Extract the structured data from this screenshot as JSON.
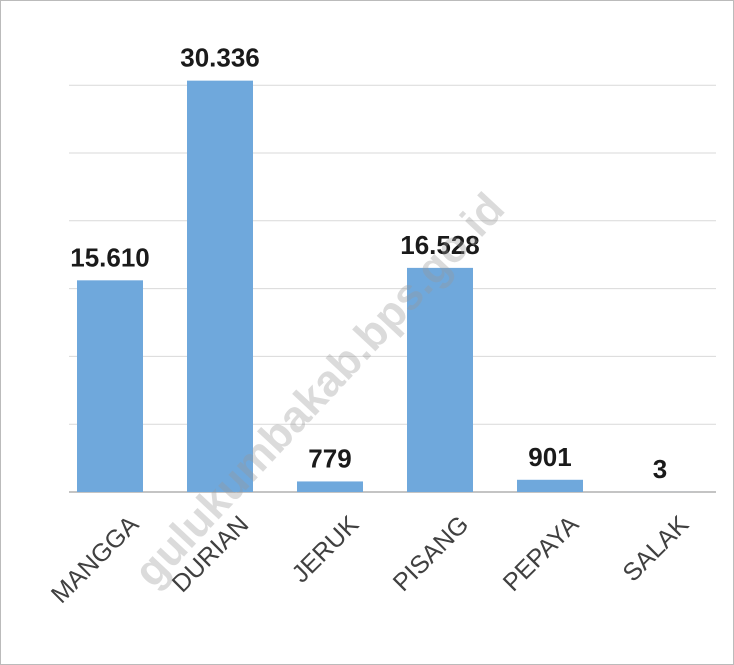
{
  "chart_data": {
    "type": "bar",
    "categories": [
      "MANGGA",
      "DURIAN",
      "JERUK",
      "PISANG",
      "PEPAYA",
      "SALAK"
    ],
    "values": [
      15610,
      30336,
      779,
      16528,
      901,
      3
    ],
    "value_labels": [
      "15.610",
      "30.336",
      "779",
      "16.528",
      "901",
      "3"
    ],
    "color": "#6fa8dc",
    "ylim": [
      0,
      35000
    ],
    "yticks": [
      0,
      5000,
      10000,
      15000,
      20000,
      25000,
      30000
    ],
    "grid": true,
    "watermark": "gulukumbakab.bps.go.id"
  }
}
